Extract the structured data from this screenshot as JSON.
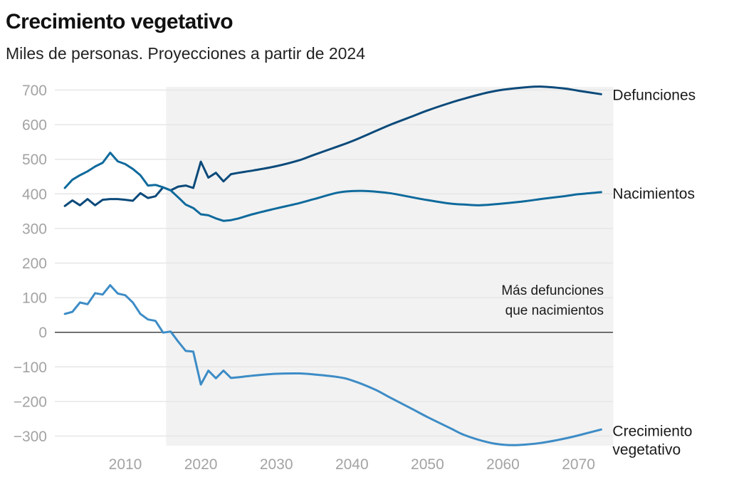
{
  "title": "Crecimiento vegetativo",
  "subtitle": "Miles de personas. Proyecciones a partir de 2024",
  "chart_data": {
    "type": "line",
    "title": "Crecimiento vegetativo",
    "subtitle": "Miles de personas. Proyecciones a partir de 2024",
    "xlabel": "",
    "ylabel": "",
    "xlim": [
      2002,
      2073
    ],
    "ylim": [
      -300,
      700
    ],
    "x_ticks": [
      2010,
      2020,
      2030,
      2040,
      2050,
      2060,
      2070
    ],
    "y_ticks": [
      700,
      600,
      500,
      400,
      300,
      200,
      100,
      0,
      -100,
      -200,
      -300
    ],
    "y_tick_labels": [
      "700",
      "600",
      "500",
      "400",
      "300",
      "200",
      "100",
      "0",
      "−100",
      "−200",
      "−300"
    ],
    "grid": true,
    "legend": "direct labels at right end of lines",
    "shaded_region": {
      "from_year": 2015.4,
      "to_year": 2074.6,
      "color": "#f2f2f2"
    },
    "annotation": {
      "lines": [
        "Más defunciones",
        "que nacimientos"
      ],
      "year": 2073,
      "value": 0,
      "position": "above zero line, right-aligned"
    },
    "series": [
      {
        "name": "Defunciones",
        "label_lines": [
          "Defunciones"
        ],
        "color": "#0b4a7a",
        "points": [
          [
            2002,
            365
          ],
          [
            2003,
            381
          ],
          [
            2004,
            367
          ],
          [
            2005,
            385
          ],
          [
            2006,
            367
          ],
          [
            2007,
            383
          ],
          [
            2008,
            385
          ],
          [
            2009,
            385
          ],
          [
            2010,
            383
          ],
          [
            2011,
            380
          ],
          [
            2012,
            402
          ],
          [
            2013,
            388
          ],
          [
            2014,
            393
          ],
          [
            2015,
            419
          ],
          [
            2016,
            410
          ],
          [
            2017,
            421
          ],
          [
            2018,
            424
          ],
          [
            2019,
            417
          ],
          [
            2020,
            493
          ],
          [
            2021,
            447
          ],
          [
            2022,
            461
          ],
          [
            2023,
            436
          ],
          [
            2024,
            457
          ],
          [
            2025,
            461
          ],
          [
            2027,
            468
          ],
          [
            2030,
            480
          ],
          [
            2033,
            497
          ],
          [
            2035,
            513
          ],
          [
            2038,
            536
          ],
          [
            2040,
            552
          ],
          [
            2043,
            580
          ],
          [
            2045,
            599
          ],
          [
            2048,
            624
          ],
          [
            2050,
            641
          ],
          [
            2053,
            663
          ],
          [
            2055,
            676
          ],
          [
            2058,
            693
          ],
          [
            2060,
            701
          ],
          [
            2063,
            708
          ],
          [
            2065,
            710
          ],
          [
            2068,
            705
          ],
          [
            2070,
            698
          ],
          [
            2073,
            688
          ]
        ]
      },
      {
        "name": "Nacimientos",
        "label_lines": [
          "Nacimientos"
        ],
        "color": "#0f6a9c",
        "points": [
          [
            2002,
            417
          ],
          [
            2003,
            441
          ],
          [
            2004,
            454
          ],
          [
            2005,
            465
          ],
          [
            2006,
            479
          ],
          [
            2007,
            490
          ],
          [
            2008,
            519
          ],
          [
            2009,
            494
          ],
          [
            2010,
            486
          ],
          [
            2011,
            472
          ],
          [
            2012,
            454
          ],
          [
            2013,
            424
          ],
          [
            2014,
            426
          ],
          [
            2015,
            419
          ],
          [
            2016,
            410
          ],
          [
            2017,
            390
          ],
          [
            2018,
            369
          ],
          [
            2019,
            359
          ],
          [
            2020,
            341
          ],
          [
            2021,
            338
          ],
          [
            2022,
            329
          ],
          [
            2023,
            322
          ],
          [
            2024,
            324
          ],
          [
            2025,
            329
          ],
          [
            2027,
            342
          ],
          [
            2030,
            358
          ],
          [
            2033,
            373
          ],
          [
            2035,
            385
          ],
          [
            2038,
            403
          ],
          [
            2040,
            408
          ],
          [
            2042,
            408
          ],
          [
            2045,
            402
          ],
          [
            2048,
            390
          ],
          [
            2050,
            382
          ],
          [
            2053,
            372
          ],
          [
            2055,
            369
          ],
          [
            2057,
            367
          ],
          [
            2060,
            372
          ],
          [
            2063,
            379
          ],
          [
            2065,
            385
          ],
          [
            2068,
            393
          ],
          [
            2070,
            399
          ],
          [
            2073,
            405
          ]
        ]
      },
      {
        "name": "Crecimiento vegetativo",
        "label_lines": [
          "Crecimiento",
          "vegetativo"
        ],
        "color": "#3d8cc6",
        "points": [
          [
            2002,
            53
          ],
          [
            2003,
            59
          ],
          [
            2004,
            86
          ],
          [
            2005,
            81
          ],
          [
            2006,
            113
          ],
          [
            2007,
            109
          ],
          [
            2008,
            136
          ],
          [
            2009,
            112
          ],
          [
            2010,
            107
          ],
          [
            2011,
            86
          ],
          [
            2012,
            53
          ],
          [
            2013,
            37
          ],
          [
            2014,
            33
          ],
          [
            2015,
            -1
          ],
          [
            2016,
            2
          ],
          [
            2017,
            -27
          ],
          [
            2018,
            -54
          ],
          [
            2019,
            -56
          ],
          [
            2020,
            -151
          ],
          [
            2021,
            -111
          ],
          [
            2022,
            -133
          ],
          [
            2023,
            -111
          ],
          [
            2024,
            -132
          ],
          [
            2025,
            -130
          ],
          [
            2027,
            -125
          ],
          [
            2030,
            -120
          ],
          [
            2033,
            -119
          ],
          [
            2035,
            -122
          ],
          [
            2038,
            -129
          ],
          [
            2040,
            -139
          ],
          [
            2043,
            -165
          ],
          [
            2045,
            -188
          ],
          [
            2048,
            -222
          ],
          [
            2050,
            -245
          ],
          [
            2053,
            -277
          ],
          [
            2055,
            -298
          ],
          [
            2058,
            -318
          ],
          [
            2060,
            -325
          ],
          [
            2062,
            -326
          ],
          [
            2065,
            -320
          ],
          [
            2068,
            -308
          ],
          [
            2070,
            -298
          ],
          [
            2073,
            -281
          ]
        ]
      }
    ]
  }
}
